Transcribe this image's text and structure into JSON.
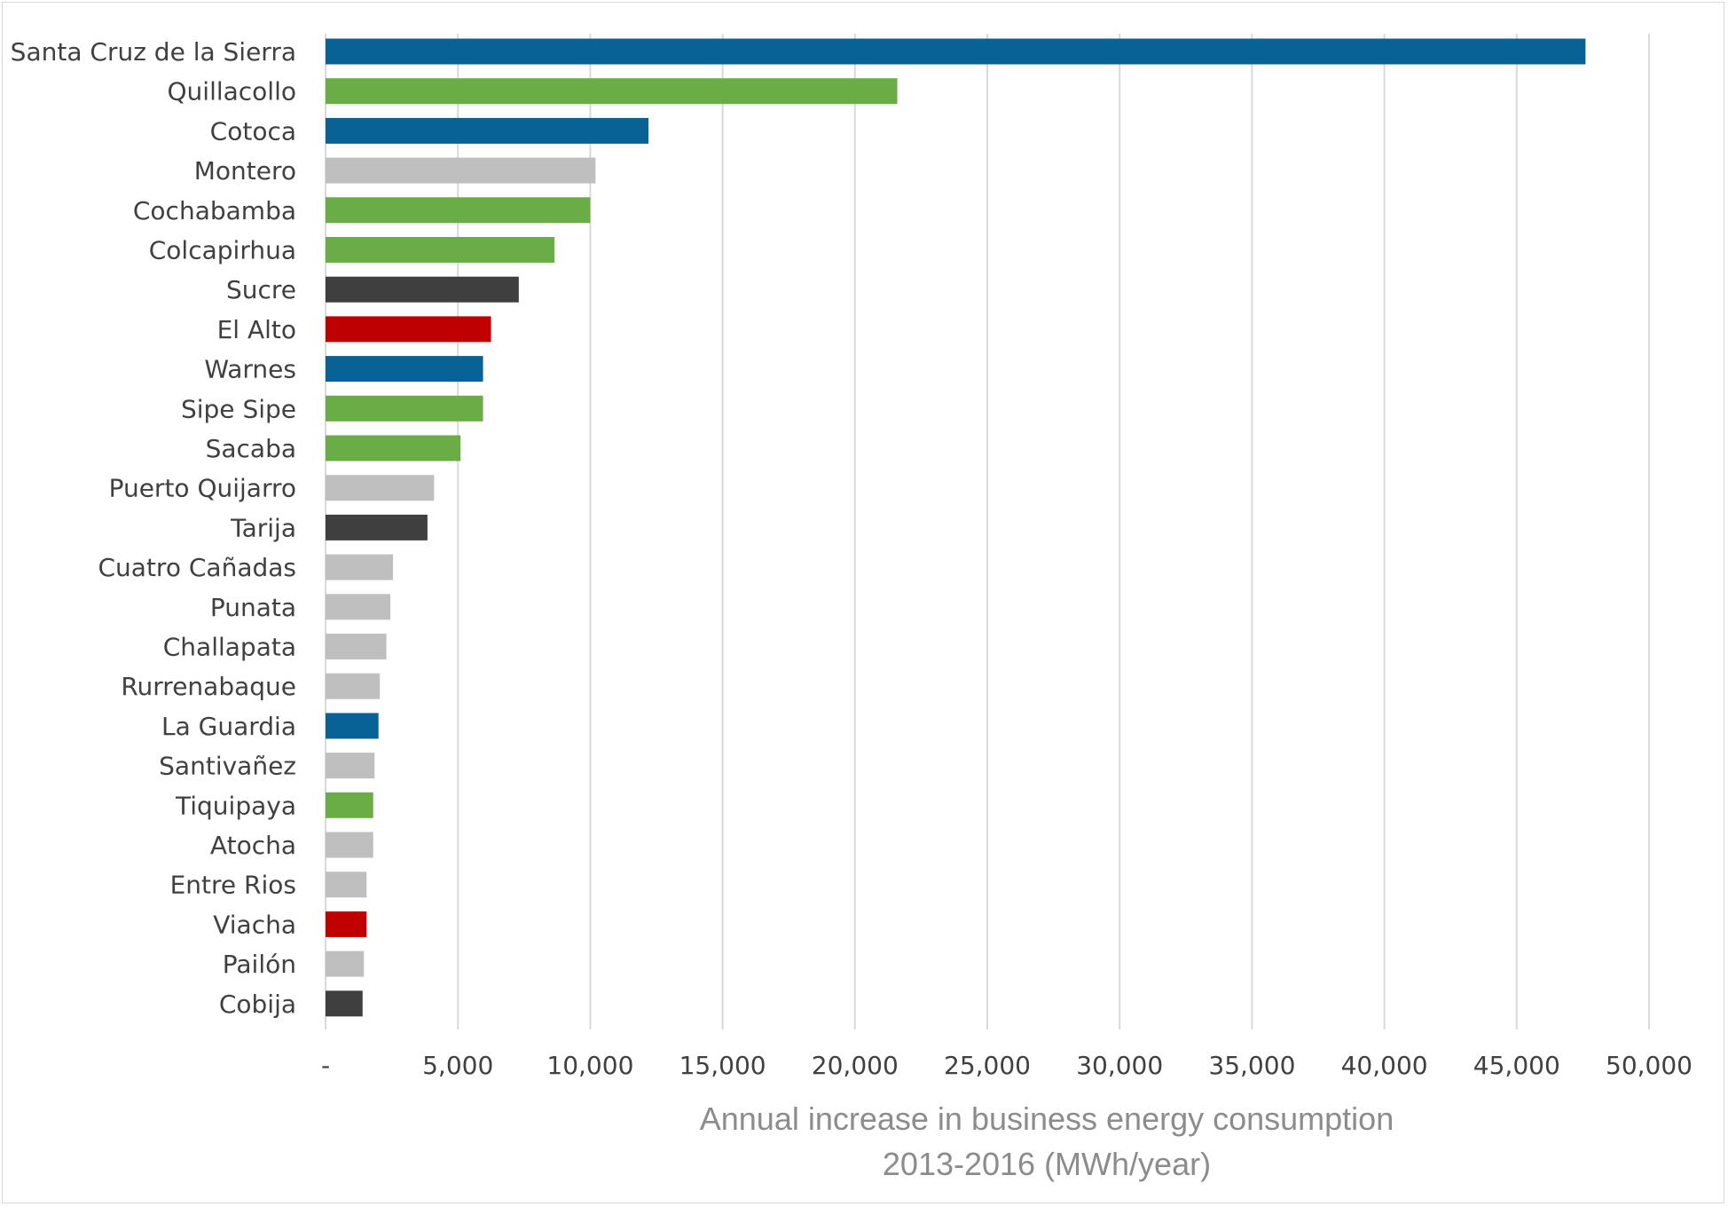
{
  "chart_data": {
    "type": "bar",
    "orientation": "horizontal",
    "categories": [
      "Santa Cruz de la Sierra",
      "Quillacollo",
      "Cotoca",
      "Montero",
      "Cochabamba",
      "Colcapirhua",
      "Sucre",
      "El Alto",
      "Warnes",
      "Sipe Sipe",
      "Sacaba",
      "Puerto Quijarro",
      "Tarija",
      "Cuatro Cañadas",
      "Punata",
      "Challapata",
      "Rurrenabaque",
      "La Guardia",
      "Santivañez",
      "Tiquipaya",
      "Atocha",
      "Entre Rios",
      "Viacha",
      "Pailón",
      "Cobija"
    ],
    "values": [
      47600,
      21600,
      12200,
      10200,
      10000,
      8650,
      7300,
      6250,
      5950,
      5950,
      5100,
      4100,
      3850,
      2550,
      2450,
      2300,
      2050,
      2000,
      1850,
      1800,
      1800,
      1550,
      1550,
      1450,
      1400
    ],
    "bar_colors": [
      "#086296",
      "#6aac46",
      "#086296",
      "#bfbfbf",
      "#6aac46",
      "#6aac46",
      "#3f3f3f",
      "#c00000",
      "#086296",
      "#6aac46",
      "#6aac46",
      "#bfbfbf",
      "#3f3f3f",
      "#bfbfbf",
      "#bfbfbf",
      "#bfbfbf",
      "#bfbfbf",
      "#086296",
      "#bfbfbf",
      "#6aac46",
      "#bfbfbf",
      "#bfbfbf",
      "#c00000",
      "#bfbfbf",
      "#3f3f3f"
    ],
    "xlim": [
      0,
      50000
    ],
    "xticks": [
      0,
      5000,
      10000,
      15000,
      20000,
      25000,
      30000,
      35000,
      40000,
      45000,
      50000
    ],
    "xtick_labels": [
      "-",
      "5,000",
      "10,000",
      "15,000",
      "20,000",
      "25,000",
      "30,000",
      "35,000",
      "40,000",
      "45,000",
      "50,000"
    ],
    "xlabel_line1": "Annual increase in business energy consumption",
    "xlabel_line2": "2013-2016 (MWh/year)",
    "grid": "vertical",
    "legend": "none"
  }
}
